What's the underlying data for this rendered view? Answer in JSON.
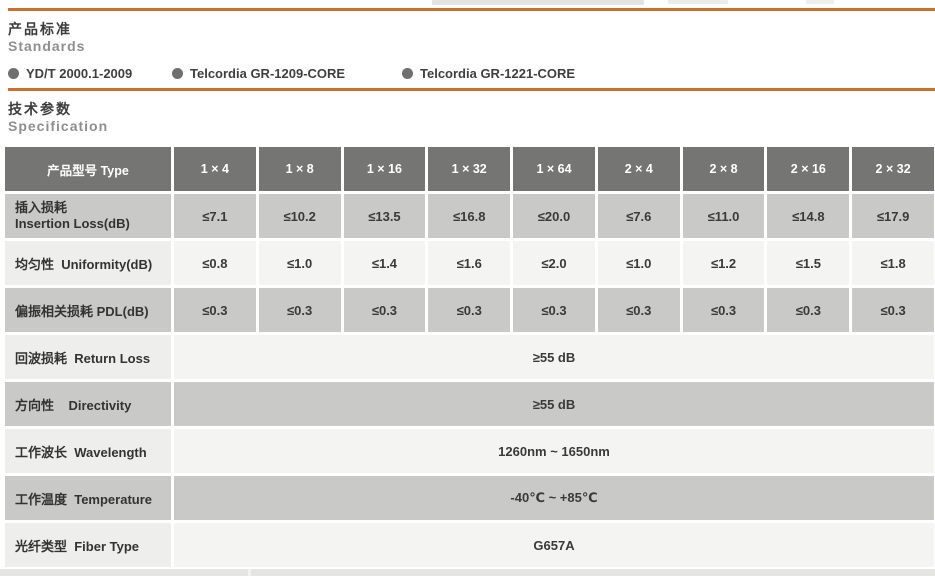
{
  "accent_color": "#c8702c",
  "standards": {
    "title_cn": "产品标准",
    "title_en": "Standards",
    "items": [
      {
        "label": "YD/T 2000.1-2009"
      },
      {
        "label": "Telcordia GR-1209-CORE"
      },
      {
        "label": "Telcordia GR-1221-CORE"
      }
    ]
  },
  "spec": {
    "title_cn": "技术参数",
    "title_en": "Specification",
    "table": {
      "header": [
        "产品型号 Type",
        "1 × 4",
        "1 × 8",
        "1 × 16",
        "1 × 32",
        "1 × 64",
        "2 × 4",
        "2 × 8",
        "2 × 16",
        "2 × 32"
      ],
      "rows": [
        {
          "label_cn": "插入损耗",
          "label_en": "Insertion Loss(dB)",
          "values": [
            "≤7.1",
            "≤10.2",
            "≤13.5",
            "≤16.8",
            "≤20.0",
            "≤7.6",
            "≤11.0",
            "≤14.8",
            "≤17.9"
          ]
        },
        {
          "label": "均匀性  Uniformity(dB)",
          "values": [
            "≤0.8",
            "≤1.0",
            "≤1.4",
            "≤1.6",
            "≤2.0",
            "≤1.0",
            "≤1.2",
            "≤1.5",
            "≤1.8"
          ]
        },
        {
          "label": "偏振相关损耗 PDL(dB)",
          "values": [
            "≤0.3",
            "≤0.3",
            "≤0.3",
            "≤0.3",
            "≤0.3",
            "≤0.3",
            "≤0.3",
            "≤0.3",
            "≤0.3"
          ]
        },
        {
          "label": "回波损耗  Return Loss",
          "span_value": "≥55 dB"
        },
        {
          "label": "方向性    Directivity",
          "span_value": "≥55 dB"
        },
        {
          "label": "工作波长  Wavelength",
          "span_value": "1260nm ~ 1650nm"
        },
        {
          "label": "工作温度  Temperature",
          "span_value": "-40℃ ~ +85℃"
        },
        {
          "label": "光纤类型  Fiber Type",
          "span_value": "G657A"
        }
      ]
    }
  }
}
